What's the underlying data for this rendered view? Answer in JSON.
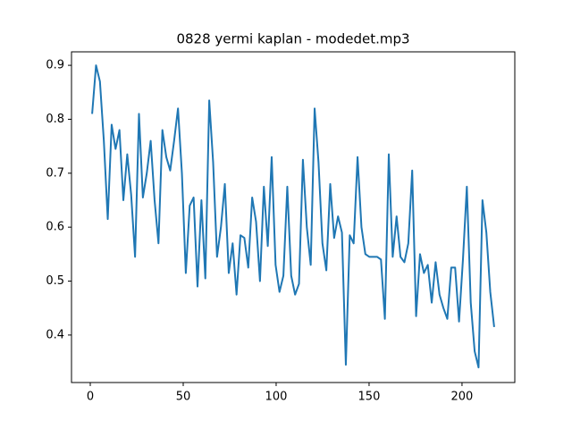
{
  "chart_data": {
    "type": "line",
    "title": "0828 yermi kaplan - modedet.mp3",
    "color": "#1f77b4",
    "x": [
      1,
      3.1,
      5.2,
      7.3,
      9.4,
      11.5,
      13.6,
      15.7,
      17.8,
      19.9,
      22,
      24.1,
      26.2,
      28.3,
      30.4,
      32.5,
      34.6,
      36.7,
      38.8,
      40.9,
      43,
      45.1,
      47.2,
      49.3,
      51.4,
      53.5,
      55.6,
      57.7,
      59.8,
      61.9,
      64,
      66.1,
      68.2,
      70.3,
      72.4,
      74.5,
      76.6,
      78.7,
      80.8,
      82.9,
      85,
      87.1,
      89.2,
      91.3,
      93.4,
      95.5,
      97.6,
      99.7,
      101.8,
      103.9,
      106,
      108.1,
      110.2,
      112.3,
      114.4,
      116.5,
      118.6,
      120.7,
      122.8,
      124.9,
      127,
      129.1,
      131.2,
      133.3,
      135.4,
      137.5,
      139.6,
      141.7,
      143.8,
      145.9,
      148,
      150.1,
      152.2,
      154.3,
      156.4,
      158.5,
      160.6,
      162.7,
      164.8,
      166.9,
      169,
      171.1,
      173.2,
      175.3,
      177.4,
      179.5,
      181.6,
      183.7,
      185.8,
      187.9,
      190,
      192.1,
      194.2,
      196.3,
      198.4,
      200.5,
      202.6,
      204.7,
      206.8,
      208.9,
      211,
      213.1,
      215.2,
      217.3
    ],
    "values": [
      0.81,
      0.9,
      0.87,
      0.76,
      0.615,
      0.79,
      0.745,
      0.78,
      0.65,
      0.735,
      0.66,
      0.545,
      0.81,
      0.655,
      0.7,
      0.76,
      0.65,
      0.57,
      0.78,
      0.73,
      0.705,
      0.76,
      0.82,
      0.7,
      0.515,
      0.64,
      0.655,
      0.49,
      0.65,
      0.505,
      0.835,
      0.72,
      0.545,
      0.6,
      0.68,
      0.515,
      0.57,
      0.475,
      0.585,
      0.58,
      0.525,
      0.655,
      0.61,
      0.5,
      0.675,
      0.565,
      0.73,
      0.53,
      0.48,
      0.51,
      0.675,
      0.51,
      0.475,
      0.495,
      0.725,
      0.6,
      0.53,
      0.82,
      0.72,
      0.57,
      0.52,
      0.68,
      0.58,
      0.62,
      0.59,
      0.345,
      0.585,
      0.57,
      0.73,
      0.6,
      0.55,
      0.545,
      0.545,
      0.545,
      0.54,
      0.43,
      0.735,
      0.545,
      0.62,
      0.545,
      0.535,
      0.57,
      0.705,
      0.435,
      0.55,
      0.515,
      0.53,
      0.46,
      0.535,
      0.475,
      0.45,
      0.43,
      0.525,
      0.525,
      0.425,
      0.54,
      0.675,
      0.46,
      0.37,
      0.34,
      0.65,
      0.59,
      0.48,
      0.415
    ],
    "xlim": [
      -10.1,
      228.4
    ],
    "xticks": [
      0,
      50,
      100,
      150,
      200
    ],
    "ylim": [
      0.312,
      0.925
    ],
    "yticks": [
      0.4,
      0.5,
      0.6,
      0.7,
      0.8,
      0.9
    ]
  }
}
